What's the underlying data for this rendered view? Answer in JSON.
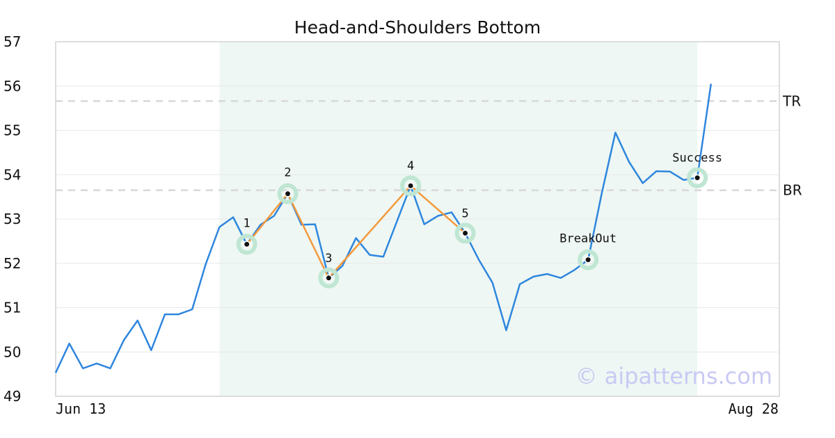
{
  "chart_data": {
    "type": "line",
    "title": "Head-and-Shoulders Bottom",
    "ylim": [
      49,
      57
    ],
    "yticks": [
      "49",
      "50",
      "51",
      "52",
      "53",
      "54",
      "55",
      "56",
      "57"
    ],
    "x_range": [
      0,
      53
    ],
    "x_tick_labels": [
      {
        "x": 0,
        "label": "Jun 13"
      },
      {
        "x": 53,
        "label": "Aug 28"
      }
    ],
    "grid": true,
    "series": [
      {
        "color": "#2e86de",
        "points": [
          [
            0,
            49.53
          ],
          [
            1,
            50.19
          ],
          [
            2,
            49.63
          ],
          [
            3,
            49.74
          ],
          [
            4,
            49.63
          ],
          [
            5,
            50.27
          ],
          [
            6,
            50.71
          ],
          [
            7,
            50.04
          ],
          [
            8,
            50.85
          ],
          [
            9,
            50.85
          ],
          [
            10,
            50.96
          ],
          [
            11,
            51.99
          ],
          [
            12,
            52.82
          ],
          [
            13,
            53.04
          ],
          [
            14,
            52.43
          ],
          [
            15,
            52.87
          ],
          [
            16,
            53.07
          ],
          [
            17,
            53.57
          ],
          [
            18,
            52.87
          ],
          [
            19,
            52.88
          ],
          [
            20,
            51.67
          ],
          [
            21,
            51.94
          ],
          [
            22,
            52.57
          ],
          [
            23,
            52.19
          ],
          [
            24,
            52.15
          ],
          [
            25,
            52.95
          ],
          [
            26,
            53.75
          ],
          [
            27,
            52.88
          ],
          [
            28,
            53.07
          ],
          [
            29,
            53.15
          ],
          [
            30,
            52.68
          ],
          [
            31,
            52.08
          ],
          [
            32,
            51.56
          ],
          [
            33,
            50.49
          ],
          [
            34,
            51.53
          ],
          [
            35,
            51.7
          ],
          [
            36,
            51.76
          ],
          [
            37,
            51.67
          ],
          [
            38,
            51.85
          ],
          [
            39,
            52.08
          ],
          [
            40,
            53.58
          ],
          [
            41,
            54.95
          ],
          [
            42,
            54.29
          ],
          [
            43,
            53.81
          ],
          [
            44,
            54.08
          ],
          [
            45,
            54.07
          ],
          [
            46,
            53.88
          ],
          [
            47,
            53.93
          ],
          [
            48,
            56.05
          ]
        ]
      }
    ],
    "pattern_line": {
      "color": "#f4993d",
      "points": [
        [
          14,
          52.43
        ],
        [
          17,
          53.57
        ],
        [
          20,
          51.67
        ],
        [
          26,
          53.75
        ],
        [
          30,
          52.68
        ]
      ]
    },
    "shaded_region": {
      "x_start": 12,
      "x_end": 47,
      "color": "#eef7f3"
    },
    "reference_lines": [
      {
        "label": "TR",
        "value": 55.66
      },
      {
        "label": "BR",
        "value": 53.65
      }
    ],
    "annotations": [
      {
        "label": "1",
        "x": 14,
        "y": 52.43
      },
      {
        "label": "2",
        "x": 17,
        "y": 53.57
      },
      {
        "label": "3",
        "x": 20,
        "y": 51.67
      },
      {
        "label": "4",
        "x": 26,
        "y": 53.75
      },
      {
        "label": "5",
        "x": 30,
        "y": 52.68
      },
      {
        "label": "BreakOut",
        "x": 39,
        "y": 52.08
      },
      {
        "label": "Success",
        "x": 47,
        "y": 53.93
      }
    ],
    "marker_ring_color": "#bfe6d3",
    "watermark": "© aipatterns.com"
  }
}
